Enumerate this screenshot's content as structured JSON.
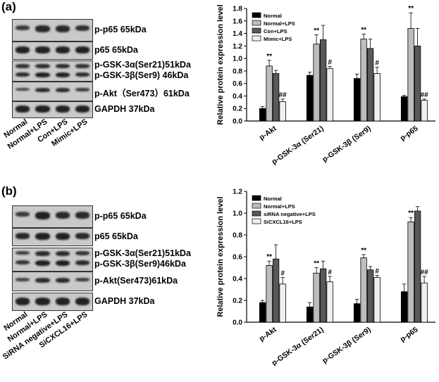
{
  "panels": [
    {
      "label": "(a)",
      "blots": [
        {
          "label": "p-p65 65kDa"
        },
        {
          "label": "p65 65kDa"
        },
        {
          "label": "p-GSK-3α(Ser21)51kDa\np-GSK-3β(Ser9) 46kDa"
        },
        {
          "label": "p-Akt（Ser473）61kDa"
        },
        {
          "label": "GAPDH  37kDa"
        }
      ],
      "lanes": [
        "Normal",
        "Normal+LPS",
        "Con+LPS",
        "Mimic+LPS"
      ]
    },
    {
      "label": "(b)",
      "blots": [
        {
          "label": "p-p65 65kDa"
        },
        {
          "label": "p65 65kDa"
        },
        {
          "label": "p-GSK-3α(Ser21)51kDa\np-GSK-3β(Ser9)46kDa"
        },
        {
          "label": "p-Akt(Ser473)61kDa"
        },
        {
          "label": "GAPDH  37kDa"
        }
      ],
      "lanes": [
        "Normal",
        "Normal+LPS",
        "SiRNA negative+LPS",
        "SiCXCL16+LPS"
      ]
    }
  ],
  "chart_data": [
    {
      "type": "bar",
      "ylabel": "Relative protein expression level",
      "ylim": [
        0,
        1.8
      ],
      "yticks": [
        "0.0",
        "0.2",
        "0.4",
        "0.6",
        "0.8",
        "1.0",
        "1.2",
        "1.4",
        "1.6",
        "1.8"
      ],
      "categories": [
        "p-Akt",
        "p-GSK-3α (Ser21)",
        "p-GSK-3β (Ser9)",
        "p-p65"
      ],
      "legend_position": "top-left",
      "series": [
        {
          "name": "Normal",
          "color": "#000000",
          "values": [
            0.2,
            0.73,
            0.68,
            0.39
          ],
          "errors": [
            0.03,
            0.05,
            0.07,
            0.02
          ]
        },
        {
          "name": "Normal+LPS",
          "color": "#bdbdbd",
          "values": [
            0.88,
            1.23,
            1.31,
            1.48
          ],
          "errors": [
            0.09,
            0.15,
            0.08,
            0.25
          ]
        },
        {
          "name": "Con+LPS",
          "color": "#595959",
          "values": [
            0.76,
            1.3,
            1.16,
            1.2
          ],
          "errors": [
            0.05,
            0.23,
            0.15,
            0.28
          ]
        },
        {
          "name": "Mimic+LPS",
          "color": "#f0f0f0",
          "values": [
            0.31,
            0.84,
            0.76,
            0.33
          ],
          "errors": [
            0.04,
            0.03,
            0.1,
            0.02
          ]
        }
      ],
      "annotations": [
        {
          "category": 0,
          "series": 1,
          "text": "**"
        },
        {
          "category": 0,
          "series": 3,
          "text": "##"
        },
        {
          "category": 1,
          "series": 1,
          "text": "**"
        },
        {
          "category": 1,
          "series": 3,
          "text": "#"
        },
        {
          "category": 2,
          "series": 1,
          "text": "**"
        },
        {
          "category": 2,
          "series": 3,
          "text": "#"
        },
        {
          "category": 3,
          "series": 1,
          "text": "**"
        },
        {
          "category": 3,
          "series": 3,
          "text": "##"
        }
      ]
    },
    {
      "type": "bar",
      "ylabel": "Relative protein expression level",
      "ylim": [
        0,
        1.2
      ],
      "yticks": [
        "0.0",
        "0.2",
        "0.4",
        "0.6",
        "0.8",
        "1.0",
        "1.2"
      ],
      "categories": [
        "p-Akt",
        "p-GSK-3α (Ser21)",
        "p-GSK-3β (Ser9)",
        "p-p65"
      ],
      "legend_position": "top-left",
      "series": [
        {
          "name": "Normal",
          "color": "#000000",
          "values": [
            0.18,
            0.14,
            0.17,
            0.28
          ],
          "errors": [
            0.02,
            0.04,
            0.04,
            0.07
          ]
        },
        {
          "name": "Normal+LPS",
          "color": "#bdbdbd",
          "values": [
            0.52,
            0.45,
            0.59,
            0.92
          ],
          "errors": [
            0.04,
            0.05,
            0.03,
            0.04
          ]
        },
        {
          "name": "siRNA negative+LPS",
          "color": "#595959",
          "values": [
            0.58,
            0.49,
            0.48,
            1.02
          ],
          "errors": [
            0.13,
            0.07,
            0.03,
            0.04
          ]
        },
        {
          "name": "SiCXCL16+LPS",
          "color": "#f0f0f0",
          "values": [
            0.35,
            0.37,
            0.41,
            0.36
          ],
          "errors": [
            0.06,
            0.05,
            0.02,
            0.06
          ]
        }
      ],
      "annotations": [
        {
          "category": 0,
          "series": 1,
          "text": "**"
        },
        {
          "category": 0,
          "series": 3,
          "text": "#"
        },
        {
          "category": 1,
          "series": 1,
          "text": "**"
        },
        {
          "category": 1,
          "series": 3,
          "text": "#"
        },
        {
          "category": 2,
          "series": 1,
          "text": "**"
        },
        {
          "category": 2,
          "series": 3,
          "text": "#"
        },
        {
          "category": 3,
          "series": 1,
          "text": "**"
        },
        {
          "category": 3,
          "series": 3,
          "text": "##"
        }
      ]
    }
  ]
}
